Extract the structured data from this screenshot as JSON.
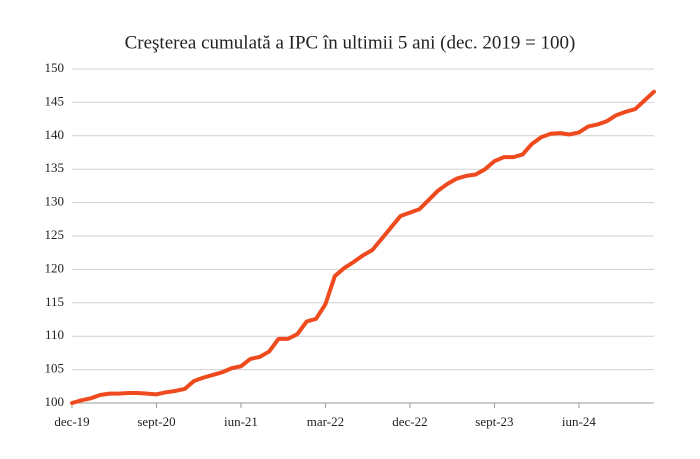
{
  "chart_data": {
    "type": "line",
    "title": "Creşterea cumulată a IPC în ultimii 5 ani (dec. 2019 = 100)",
    "categories": [
      "dec-19",
      null,
      null,
      null,
      null,
      null,
      null,
      null,
      null,
      "sept-20",
      null,
      null,
      null,
      null,
      null,
      null,
      null,
      null,
      "iun-21",
      null,
      null,
      null,
      null,
      null,
      null,
      null,
      null,
      "mar-22",
      null,
      null,
      null,
      null,
      null,
      null,
      null,
      null,
      "dec-22",
      null,
      null,
      null,
      null,
      null,
      null,
      null,
      null,
      "sept-23",
      null,
      null,
      null,
      null,
      null,
      null,
      null,
      null,
      "iun-24",
      null,
      null,
      null,
      null,
      null,
      null,
      null,
      null
    ],
    "series": [
      {
        "name": "IPC",
        "color": "#ef4a1e",
        "values": [
          100,
          100.4,
          100.7,
          101.2,
          101.4,
          101.4,
          101.5,
          101.5,
          101.4,
          101.3,
          101.6,
          101.8,
          102.1,
          103.3,
          103.8,
          104.2,
          104.6,
          105.2,
          105.5,
          106.6,
          106.9,
          107.7,
          109.6,
          109.6,
          110.3,
          112.2,
          112.6,
          114.8,
          119,
          120.2,
          121.1,
          122.1,
          122.9,
          124.6,
          126.3,
          128,
          128.5,
          129,
          130.4,
          131.8,
          132.8,
          133.6,
          134,
          134.2,
          135,
          136.2,
          136.8,
          136.8,
          137.2,
          138.8,
          139.8,
          140.3,
          140.4,
          140.2,
          140.5,
          141.4,
          141.7,
          142.2,
          143.1,
          143.6,
          144,
          145.3,
          146.6
        ]
      }
    ],
    "ylim": [
      100,
      150
    ],
    "yticks": [
      100,
      105,
      110,
      115,
      120,
      125,
      130,
      135,
      140,
      145,
      150
    ],
    "grid": true
  }
}
